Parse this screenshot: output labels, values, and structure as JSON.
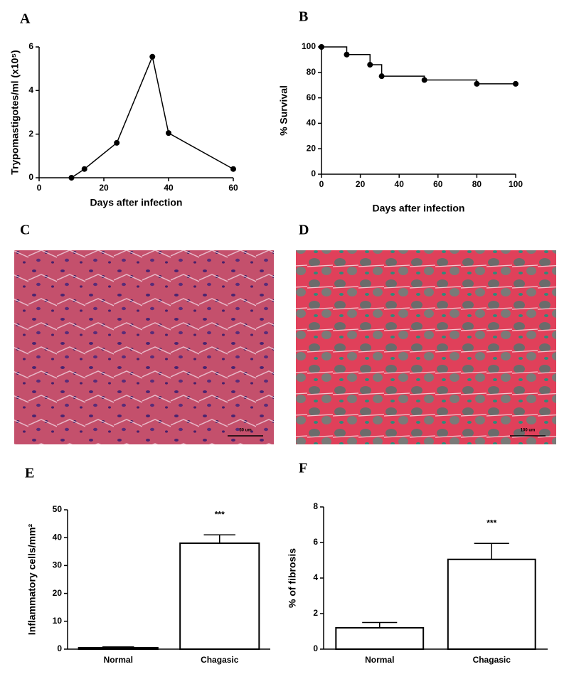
{
  "chart_data": [
    {
      "type": "line",
      "panel": "A",
      "xlabel": "Days after infection",
      "ylabel": "Trypomastigotes/ml (x10⁵)",
      "x": [
        10,
        14,
        24,
        35,
        40,
        60
      ],
      "values": [
        0,
        0.4,
        1.6,
        5.55,
        2.05,
        0.4
      ],
      "color": "#000000",
      "xlim": [
        0,
        60
      ],
      "xticks": [
        0,
        20,
        40,
        60
      ],
      "ylim": [
        0,
        6
      ],
      "yticks": [
        0,
        2,
        4,
        6
      ]
    },
    {
      "type": "step",
      "panel": "B",
      "xlabel": "Days after infection",
      "ylabel": "% Survival",
      "x": [
        0,
        13,
        25,
        31,
        53,
        80,
        100
      ],
      "values": [
        100,
        94,
        86,
        77,
        74,
        71,
        71
      ],
      "color": "#000000",
      "xlim": [
        0,
        100
      ],
      "xticks": [
        0,
        20,
        40,
        60,
        80,
        100
      ],
      "ylim": [
        0,
        100
      ],
      "yticks": [
        0,
        20,
        40,
        60,
        80,
        100
      ]
    },
    {
      "type": "image",
      "panel": "C",
      "scale_bar": "50 um"
    },
    {
      "type": "image",
      "panel": "D",
      "scale_bar": "100 um"
    },
    {
      "type": "bar",
      "panel": "E",
      "ylabel": "Inflammatory cells/mm²",
      "categories": [
        "Normal",
        "Chagasic"
      ],
      "values": [
        0.5,
        38
      ],
      "errors": [
        0.3,
        3
      ],
      "annotation": "***",
      "color": "#ffffff",
      "ylim": [
        0,
        50
      ],
      "yticks": [
        0,
        10,
        20,
        30,
        40,
        50
      ]
    },
    {
      "type": "bar",
      "panel": "F",
      "ylabel": "% of fibrosis",
      "categories": [
        "Normal",
        "Chagasic"
      ],
      "values": [
        1.2,
        5.05
      ],
      "errors": [
        0.3,
        0.9
      ],
      "annotation": "***",
      "color": "#ffffff",
      "ylim": [
        0,
        8
      ],
      "yticks": [
        0,
        2,
        4,
        6,
        8
      ]
    }
  ]
}
